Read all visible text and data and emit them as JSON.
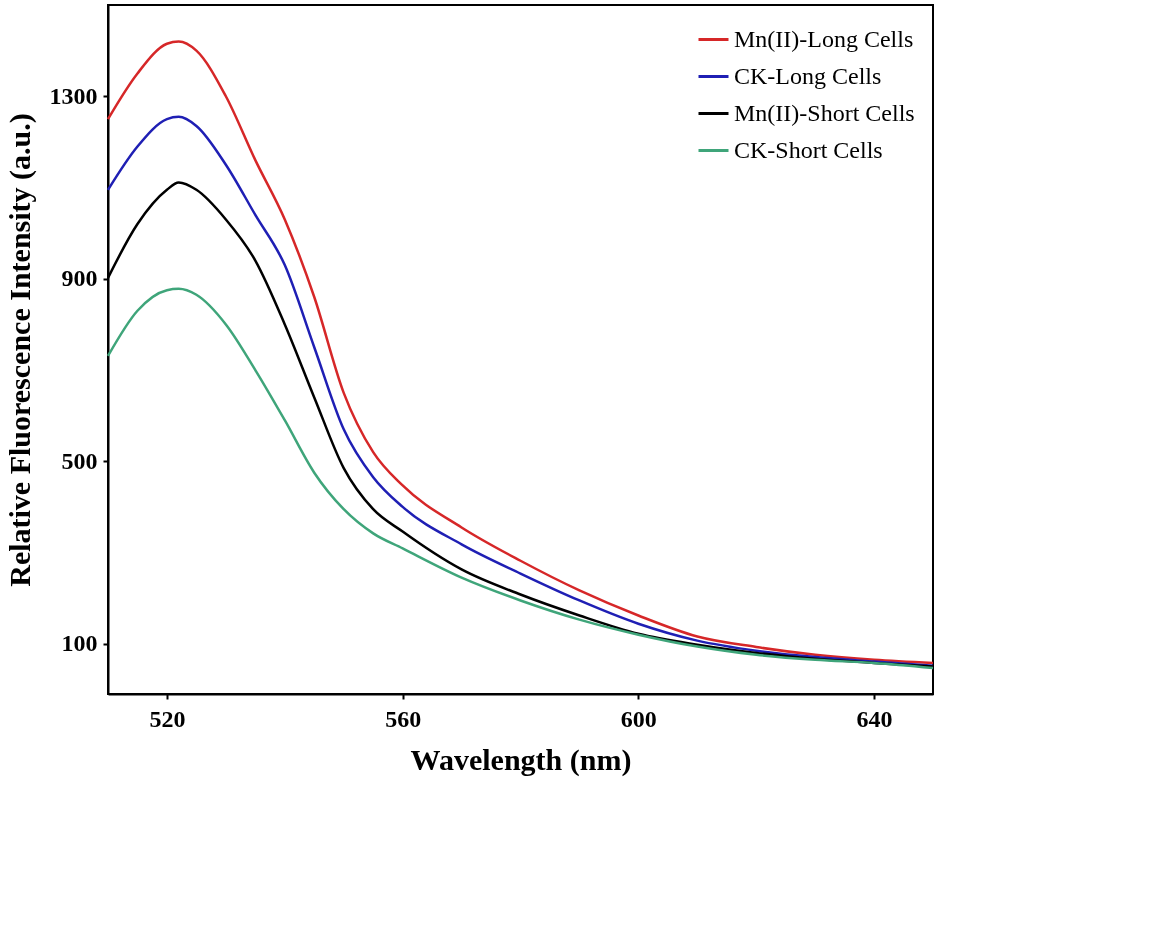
{
  "chart_data": {
    "type": "line",
    "xlabel": "Wavelength (nm)",
    "ylabel": "Relative Fluorescence Intensity (a.u.)",
    "xlim": [
      510,
      650
    ],
    "xticks": [
      520,
      560,
      600,
      640
    ],
    "ylim": [
      -10,
      1500
    ],
    "yticks": [
      100,
      500,
      900,
      {
        "value": 1300,
        "label": "1300"
      }
    ],
    "grid": false,
    "legend": "top right",
    "marker": "none",
    "line_style": "solid",
    "x": [
      510,
      515,
      520,
      522,
      525,
      530,
      535,
      540,
      545,
      550,
      555,
      560,
      570,
      580,
      590,
      600,
      610,
      620,
      630,
      640,
      650
    ],
    "series": [
      {
        "name": "Mn(II)-Long Cells",
        "color": "#d62728",
        "values": [
          1250,
          1350,
          1415,
          1420,
          1400,
          1300,
          1160,
          1030,
          860,
          650,
          520,
          447,
          355,
          282,
          217,
          162,
          116,
          93,
          76,
          65,
          58
        ]
      },
      {
        "name": "CK-Long Cells",
        "color": "#1f1fb4",
        "values": [
          1095,
          1190,
          1250,
          1255,
          1235,
          1150,
          1040,
          930,
          750,
          570,
          465,
          400,
          318,
          254,
          195,
          144,
          107,
          85,
          71,
          61,
          52
        ]
      },
      {
        "name": "Mn(II)-Short Cells",
        "color": "#000000",
        "values": [
          902,
          1020,
          1095,
          1111,
          1095,
          1030,
          940,
          800,
          640,
          485,
          395,
          346,
          263,
          208,
          162,
          122,
          98,
          80,
          67,
          58,
          50
        ]
      },
      {
        "name": "CK-Short Cells",
        "color": "#3fa57a",
        "values": [
          731,
          830,
          875,
          878,
          865,
          800,
          700,
          590,
          475,
          395,
          342,
          309,
          245,
          195,
          153,
          120,
          94,
          76,
          65,
          58,
          47
        ]
      }
    ]
  }
}
